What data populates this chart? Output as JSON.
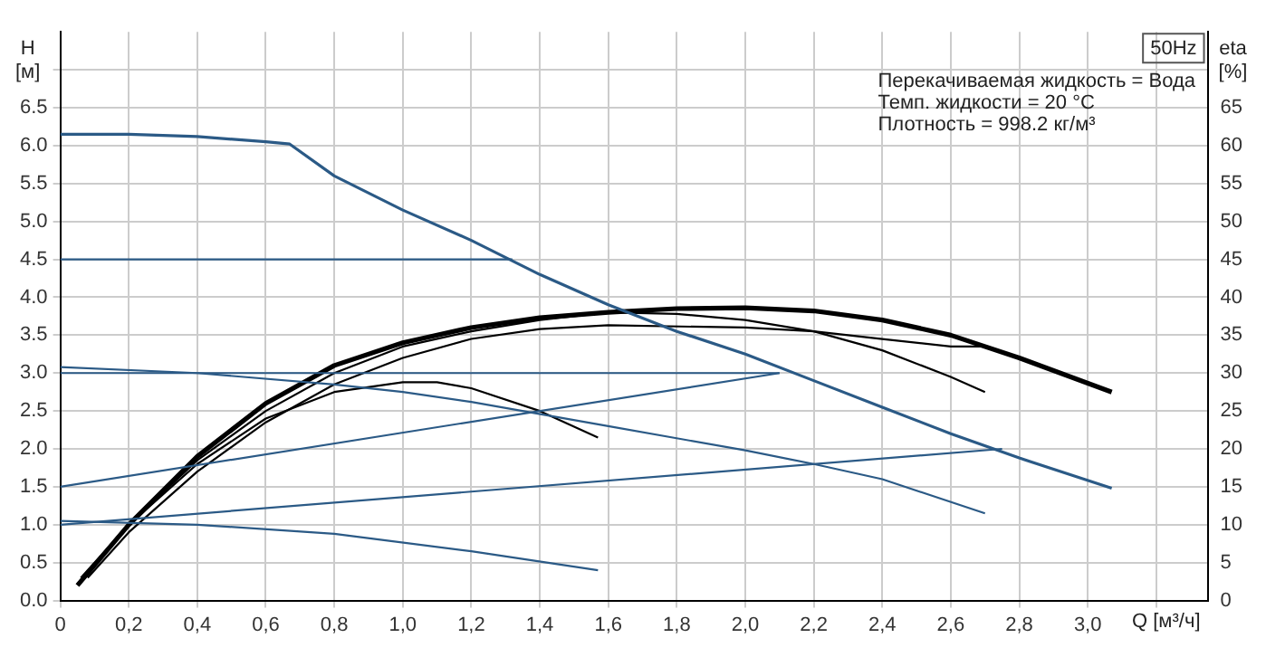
{
  "chart_data": {
    "type": "line",
    "title": "50Hz",
    "xlabel": "Q [м³/ч]",
    "ylabel": "H [м]",
    "y2label": "eta [%]",
    "annotations": [
      "Перекачиваемая жидкость = Вода",
      "Темп. жидкости = 20 °C",
      "Плотность = 998.2 кг/м³"
    ],
    "xlim": [
      0,
      3.35
    ],
    "ylim": [
      0,
      7.5
    ],
    "y2lim": [
      0,
      75
    ],
    "xticks": [
      {
        "value": 0,
        "label": "0"
      },
      {
        "value": 0.2,
        "label": "0,2"
      },
      {
        "value": 0.4,
        "label": "0,4"
      },
      {
        "value": 0.6,
        "label": "0,6"
      },
      {
        "value": 0.8,
        "label": "0,8"
      },
      {
        "value": 1.0,
        "label": "1,0"
      },
      {
        "value": 1.2,
        "label": "1,2"
      },
      {
        "value": 1.4,
        "label": "1,4"
      },
      {
        "value": 1.6,
        "label": "1,6"
      },
      {
        "value": 1.8,
        "label": "1,8"
      },
      {
        "value": 2.0,
        "label": "2,0"
      },
      {
        "value": 2.2,
        "label": "2,2"
      },
      {
        "value": 2.4,
        "label": "2,4"
      },
      {
        "value": 2.6,
        "label": "2,6"
      },
      {
        "value": 2.8,
        "label": "2,8"
      },
      {
        "value": 3.0,
        "label": "3,0"
      },
      {
        "value": 3.2,
        "label": null
      }
    ],
    "yticks": [
      {
        "value": 0,
        "label": "0.0"
      },
      {
        "value": 0.5,
        "label": "0.5"
      },
      {
        "value": 1,
        "label": "1.0"
      },
      {
        "value": 1.5,
        "label": "1.5"
      },
      {
        "value": 2,
        "label": "2.0"
      },
      {
        "value": 2.5,
        "label": "2.5"
      },
      {
        "value": 3,
        "label": "3.0"
      },
      {
        "value": 3.5,
        "label": "3.5"
      },
      {
        "value": 4,
        "label": "4.0"
      },
      {
        "value": 4.5,
        "label": "4.5"
      },
      {
        "value": 5,
        "label": "5.0"
      },
      {
        "value": 5.5,
        "label": "5.5"
      },
      {
        "value": 6,
        "label": "6.0"
      },
      {
        "value": 6.5,
        "label": "6.5"
      },
      {
        "value": 7,
        "label": null
      }
    ],
    "y2ticks": [
      0,
      5,
      10,
      15,
      20,
      25,
      30,
      35,
      40,
      45,
      50,
      55,
      60,
      65
    ],
    "grid": true,
    "legend": false,
    "marker": "none",
    "line_style": "solid",
    "series": [
      {
        "color": "#2b5a86",
        "x": [
          0,
          0.2,
          0.4,
          0.6,
          0.67,
          0.8,
          1.0,
          1.2,
          1.4,
          1.6,
          1.8,
          2.0,
          2.2,
          2.4,
          2.6,
          2.8,
          3.07
        ],
        "values": [
          6.15,
          6.15,
          6.12,
          6.05,
          6.02,
          5.6,
          5.15,
          4.75,
          4.3,
          3.9,
          3.55,
          3.25,
          2.9,
          2.55,
          2.2,
          1.88,
          1.48
        ]
      },
      {
        "color": "#2b5a86",
        "x": [
          0,
          1.32
        ],
        "values": [
          4.5,
          4.5
        ]
      },
      {
        "color": "#2b5a86",
        "x": [
          0,
          2.1
        ],
        "values": [
          3.0,
          3.0
        ]
      },
      {
        "color": "#2b5a86",
        "x": [
          0,
          2.1
        ],
        "values": [
          1.5,
          3.0
        ]
      },
      {
        "color": "#2b5a86",
        "x": [
          0,
          2.75
        ],
        "values": [
          1.0,
          2.0
        ]
      },
      {
        "color": "#2b5a86",
        "x": [
          0,
          0.4,
          0.8,
          1.0,
          1.2,
          1.6,
          2.0,
          2.2,
          2.4,
          2.7
        ],
        "values": [
          3.08,
          3.0,
          2.85,
          2.75,
          2.62,
          2.3,
          1.98,
          1.8,
          1.6,
          1.15
        ]
      },
      {
        "color": "#2b5a86",
        "x": [
          0,
          0.4,
          0.8,
          1.2,
          1.57
        ],
        "values": [
          1.05,
          1.0,
          0.88,
          0.65,
          0.4
        ]
      },
      {
        "color": "#000000",
        "axis": "y2",
        "x": [
          0.05,
          0.2,
          0.4,
          0.6,
          0.8,
          1.0,
          1.2,
          1.4,
          1.6,
          1.8,
          2.0,
          2.2,
          2.4,
          2.6,
          2.8,
          3.07
        ],
        "values": [
          2,
          10,
          19,
          26,
          31,
          34,
          36,
          37.3,
          38,
          38.5,
          38.6,
          38.2,
          37,
          35,
          32,
          27.5
        ]
      },
      {
        "color": "#000000",
        "axis": "y2",
        "x": [
          0.07,
          0.2,
          0.4,
          0.6,
          0.8,
          1.0,
          1.1,
          1.2,
          1.4,
          1.57
        ],
        "values": [
          3,
          10,
          18,
          24,
          27.5,
          28.8,
          28.8,
          28,
          25,
          21.5
        ]
      },
      {
        "color": "#000000",
        "axis": "y2",
        "x": [
          0.06,
          0.2,
          0.4,
          0.6,
          0.8,
          1.0,
          1.2,
          1.4,
          1.6,
          1.8,
          2.0,
          2.2,
          2.4,
          2.6,
          2.7
        ],
        "values": [
          3,
          10,
          18.5,
          25,
          30,
          33.5,
          35.5,
          37,
          38,
          37.8,
          37,
          35.5,
          33,
          29.5,
          27.5
        ]
      },
      {
        "color": "#000000",
        "axis": "y2",
        "x": [
          0.08,
          0.2,
          0.4,
          0.6,
          0.8,
          1.0,
          1.2,
          1.4,
          1.6,
          2.0,
          2.2,
          2.4,
          2.6,
          2.7
        ],
        "values": [
          3,
          9,
          17,
          23.5,
          28.5,
          32,
          34.5,
          35.8,
          36.3,
          36,
          35.5,
          34.5,
          33.5,
          33.5
        ]
      }
    ]
  }
}
